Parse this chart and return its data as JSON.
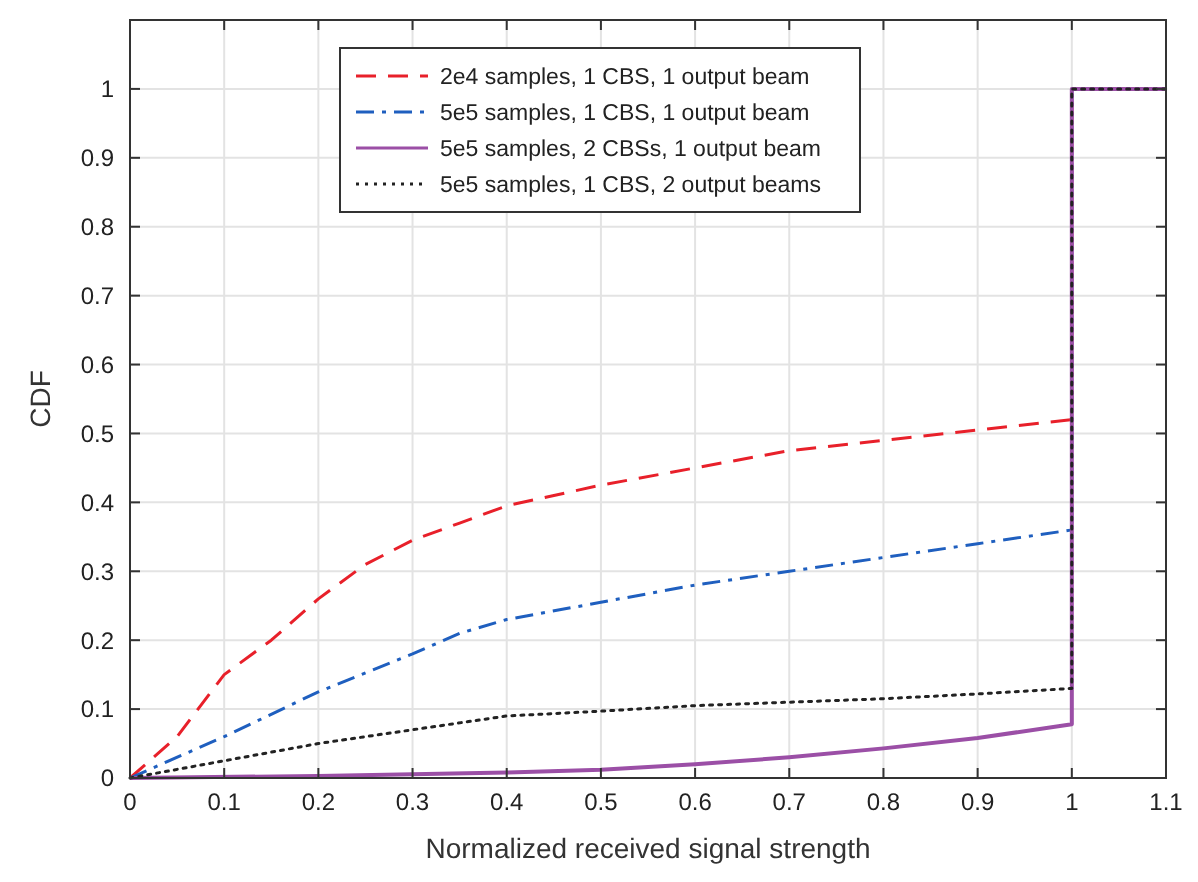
{
  "chart_data": {
    "type": "line",
    "xlabel": "Normalized received signal strength",
    "ylabel": "CDF",
    "xlim": [
      0,
      1.1
    ],
    "ylim": [
      0,
      1.1
    ],
    "xticks": [
      0,
      0.1,
      0.2,
      0.3,
      0.4,
      0.5,
      0.6,
      0.7,
      0.8,
      0.9,
      1,
      1.1
    ],
    "yticks": [
      0,
      0.1,
      0.2,
      0.3,
      0.4,
      0.5,
      0.6,
      0.7,
      0.8,
      0.9,
      1
    ],
    "grid": true,
    "legend": "top",
    "marker": "none",
    "series": [
      {
        "name": "2e4 samples, 1 CBS, 1 output beam",
        "color": "#e8202a",
        "line_style": "dashed",
        "x": [
          0,
          0.05,
          0.1,
          0.15,
          0.2,
          0.25,
          0.3,
          0.35,
          0.4,
          0.5,
          0.6,
          0.7,
          0.8,
          0.9,
          1,
          1,
          1.1
        ],
        "values": [
          0,
          0.06,
          0.15,
          0.2,
          0.26,
          0.31,
          0.345,
          0.37,
          0.395,
          0.425,
          0.45,
          0.475,
          0.49,
          0.505,
          0.52,
          1,
          1
        ]
      },
      {
        "name": "5e5 samples, 1 CBS, 1 output beam",
        "color": "#1f5fbf",
        "line_style": "dashdot",
        "x": [
          0,
          0.1,
          0.2,
          0.3,
          0.35,
          0.4,
          0.5,
          0.6,
          0.7,
          0.8,
          0.9,
          1,
          1,
          1.1
        ],
        "values": [
          0,
          0.06,
          0.125,
          0.18,
          0.21,
          0.23,
          0.255,
          0.28,
          0.3,
          0.32,
          0.34,
          0.36,
          1,
          1
        ]
      },
      {
        "name": "5e5 samples, 2 CBSs, 1 output beam",
        "color": "#9b4fa6",
        "line_style": "solid",
        "x": [
          0,
          0.2,
          0.4,
          0.5,
          0.6,
          0.7,
          0.8,
          0.9,
          1,
          1,
          1.1
        ],
        "values": [
          0,
          0.003,
          0.008,
          0.012,
          0.02,
          0.03,
          0.043,
          0.058,
          0.078,
          1,
          1
        ]
      },
      {
        "name": "5e5 samples, 1 CBS, 2 output beams",
        "color": "#222222",
        "line_style": "dotted",
        "x": [
          0,
          0.1,
          0.2,
          0.3,
          0.4,
          0.5,
          0.6,
          0.7,
          0.8,
          0.9,
          1,
          1,
          1.1
        ],
        "values": [
          0,
          0.025,
          0.05,
          0.07,
          0.09,
          0.097,
          0.105,
          0.11,
          0.115,
          0.122,
          0.13,
          1,
          1
        ]
      }
    ]
  }
}
